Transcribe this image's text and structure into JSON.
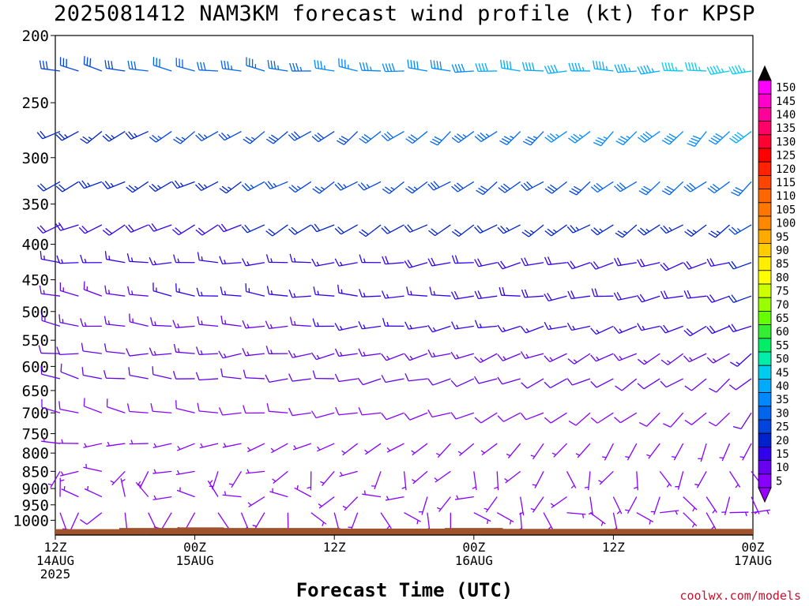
{
  "title": "2025081412 NAM3KM forecast wind profile (kt) for KPSP",
  "xlabel": "Forecast Time (UTC)",
  "credit": "coolwx.com/models",
  "chart_data": {
    "type": "wind-barb",
    "title": "2025081412 NAM3KM forecast wind profile (kt) for KPSP",
    "xlabel": "Forecast Time (UTC)",
    "ylabel": "",
    "y_scale": "log-pressure",
    "ylim": [
      1050,
      200
    ],
    "x_hours_range": [
      0,
      60
    ],
    "time_step_hours": 2,
    "pressure_levels": [
      1000,
      975,
      950,
      925,
      900,
      875,
      850,
      825,
      800,
      775,
      750,
      725,
      700,
      650,
      600,
      550,
      500,
      450,
      400,
      350,
      300,
      275,
      250,
      225,
      200
    ],
    "y_ticks": [
      200,
      250,
      300,
      350,
      400,
      450,
      500,
      550,
      600,
      650,
      700,
      750,
      800,
      850,
      900,
      950,
      1000
    ],
    "x_ticks": [
      {
        "hour": 0,
        "lines": [
          "12Z",
          "14AUG",
          "2025"
        ]
      },
      {
        "hour": 12,
        "lines": [
          "00Z",
          "15AUG"
        ]
      },
      {
        "hour": 24,
        "lines": [
          "12Z"
        ]
      },
      {
        "hour": 36,
        "lines": [
          "00Z",
          "16AUG"
        ]
      },
      {
        "hour": 48,
        "lines": [
          "12Z"
        ]
      },
      {
        "hour": 60,
        "lines": [
          "00Z",
          "17AUG"
        ]
      }
    ],
    "wind_profile_by_level": [
      {
        "pressure": 225,
        "start_dir": 285,
        "end_dir": 265,
        "start_speed": 28,
        "end_speed": 47
      },
      {
        "pressure": 275,
        "start_dir": 240,
        "end_dir": 225,
        "start_speed": 22,
        "end_speed": 40
      },
      {
        "pressure": 325,
        "start_dir": 245,
        "end_dir": 230,
        "start_speed": 22,
        "end_speed": 32
      },
      {
        "pressure": 375,
        "start_dir": 245,
        "end_dir": 235,
        "start_speed": 18,
        "end_speed": 25
      },
      {
        "pressure": 425,
        "start_dir": 275,
        "end_dir": 250,
        "start_speed": 15,
        "end_speed": 20
      },
      {
        "pressure": 475,
        "start_dir": 285,
        "end_dir": 255,
        "start_speed": 14,
        "end_speed": 20
      },
      {
        "pressure": 525,
        "start_dir": 280,
        "end_dir": 245,
        "start_speed": 13,
        "end_speed": 18
      },
      {
        "pressure": 575,
        "start_dir": 275,
        "end_dir": 235,
        "start_speed": 12,
        "end_speed": 15
      },
      {
        "pressure": 625,
        "start_dir": 285,
        "end_dir": 230,
        "start_speed": 10,
        "end_speed": 12
      },
      {
        "pressure": 700,
        "start_dir": 290,
        "end_dir": 220,
        "start_speed": 8,
        "end_speed": 10
      },
      {
        "pressure": 775,
        "start_dir": 270,
        "end_dir": 200,
        "start_speed": 7,
        "end_speed": 7
      },
      {
        "pressure": 850,
        "start_dir": 250,
        "end_dir": 170,
        "start_speed": 7,
        "end_speed": 6
      },
      {
        "pressure": 925,
        "start_dir": 330,
        "end_dir": 150,
        "start_speed": 7,
        "end_speed": 6
      },
      {
        "pressure": 975,
        "start_dir": 200,
        "end_dir": 110,
        "start_speed": 8,
        "end_speed": 6
      }
    ],
    "terrain_surface_pressure": [
      {
        "hour": 0,
        "pressure": 1030
      },
      {
        "hour": 5.5,
        "pressure": 1030
      },
      {
        "hour": 5.5,
        "pressure": 1026
      },
      {
        "hour": 10.5,
        "pressure": 1026
      },
      {
        "hour": 10.5,
        "pressure": 1024
      },
      {
        "hour": 14.5,
        "pressure": 1024
      },
      {
        "hour": 14.5,
        "pressure": 1026
      },
      {
        "hour": 24.5,
        "pressure": 1026
      },
      {
        "hour": 24.5,
        "pressure": 1028
      },
      {
        "hour": 33.5,
        "pressure": 1028
      },
      {
        "hour": 33.5,
        "pressure": 1026
      },
      {
        "hour": 38.5,
        "pressure": 1026
      },
      {
        "hour": 38.5,
        "pressure": 1029
      },
      {
        "hour": 60,
        "pressure": 1029
      }
    ],
    "terrain_color": "#a0522d",
    "colorbar": {
      "values": [
        150,
        145,
        140,
        135,
        130,
        125,
        120,
        115,
        110,
        105,
        100,
        95,
        90,
        85,
        80,
        75,
        70,
        65,
        60,
        55,
        50,
        45,
        40,
        35,
        30,
        25,
        20,
        15,
        10,
        5
      ],
      "colors": [
        "#ff00ff",
        "#ff00cc",
        "#ff0099",
        "#ff0066",
        "#ff0033",
        "#ff0000",
        "#ff2200",
        "#ff4400",
        "#ff6600",
        "#ff7700",
        "#ff8800",
        "#ffaa00",
        "#ffcc00",
        "#ffee00",
        "#ffff00",
        "#ccff00",
        "#99ff00",
        "#66ff00",
        "#33ee33",
        "#00ee66",
        "#00eeaa",
        "#00ccee",
        "#00aaff",
        "#0088ff",
        "#0066ee",
        "#0044dd",
        "#0022cc",
        "#3300ee",
        "#6600ee",
        "#8800ff"
      ],
      "top_arrow_color": "#000000",
      "bottom_arrow_color": "#9900ff"
    }
  }
}
